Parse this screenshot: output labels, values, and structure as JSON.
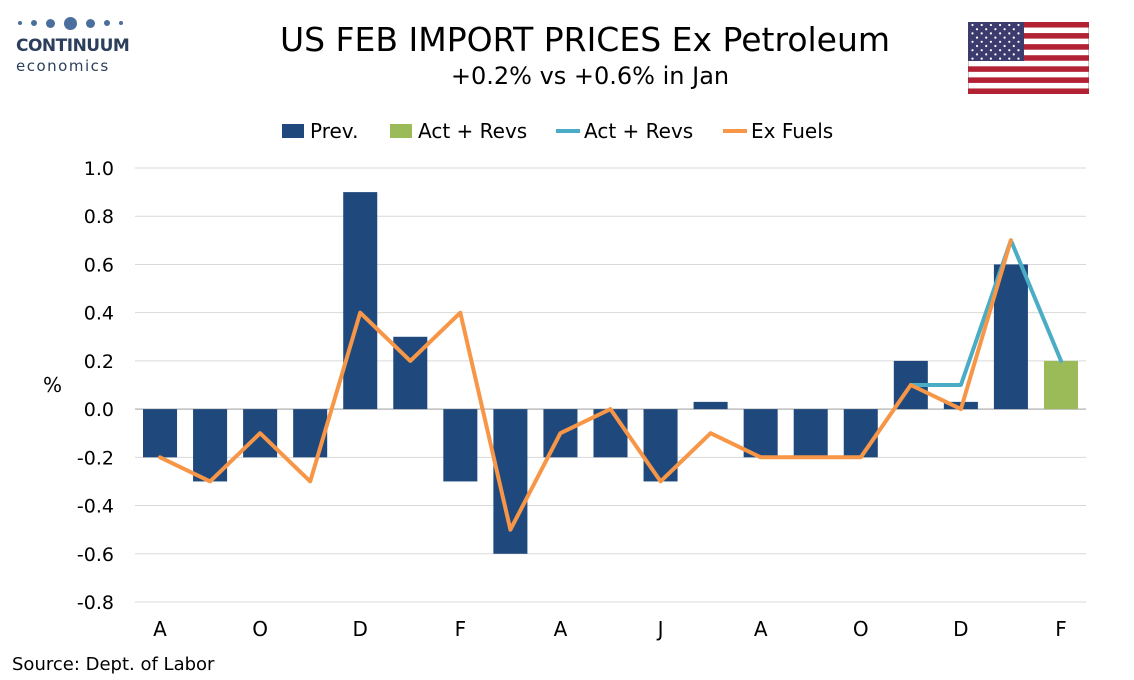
{
  "logo": {
    "name": "CONTINUUM",
    "sub": "economics"
  },
  "title": "US FEB IMPORT PRICES Ex Petroleum",
  "subtitle": "+0.2% vs +0.6% in Jan",
  "source": "Source: Dept. of Labor",
  "colors": {
    "prev": "#1f497d",
    "act_bar": "#9bbb59",
    "act_line": "#4bacc6",
    "ex_fuels": "#f79646",
    "grid": "#d9d9d9"
  },
  "chart_data": {
    "type": "bar",
    "ylabel": "%",
    "ylim": [
      -0.8,
      1.0
    ],
    "yticks": [
      "1.0",
      "0.8",
      "0.6",
      "0.4",
      "0.2",
      "0.0",
      "-0.2",
      "-0.4",
      "-0.6",
      "-0.8"
    ],
    "xtick_labels": [
      "A",
      "O",
      "D",
      "F",
      "A",
      "J",
      "A",
      "O",
      "D",
      "F"
    ],
    "legend": [
      "Prev.",
      "Act + Revs",
      "Act + Revs",
      "Ex Fuels"
    ],
    "legend_position": "top",
    "grid": true,
    "periods": 19,
    "series": [
      {
        "name": "Prev.",
        "kind": "bar",
        "values": [
          -0.2,
          -0.3,
          -0.2,
          -0.2,
          0.9,
          0.3,
          -0.3,
          -0.6,
          -0.2,
          -0.2,
          -0.3,
          0.03,
          -0.2,
          -0.2,
          -0.2,
          0.2,
          0.03,
          0.6,
          null
        ]
      },
      {
        "name": "Act + Revs",
        "kind": "bar",
        "values": [
          null,
          null,
          null,
          null,
          null,
          null,
          null,
          null,
          null,
          null,
          null,
          null,
          null,
          null,
          null,
          null,
          null,
          null,
          0.2
        ]
      },
      {
        "name": "Act + Revs",
        "kind": "line",
        "values": [
          null,
          null,
          null,
          null,
          null,
          null,
          null,
          null,
          null,
          null,
          null,
          null,
          null,
          null,
          null,
          0.1,
          0.1,
          0.7,
          0.2
        ]
      },
      {
        "name": "Ex Fuels",
        "kind": "line",
        "values": [
          -0.2,
          -0.3,
          -0.1,
          -0.3,
          0.4,
          0.2,
          0.4,
          -0.5,
          -0.1,
          0.0,
          -0.3,
          -0.1,
          -0.2,
          -0.2,
          -0.2,
          0.1,
          0.0,
          0.7,
          null
        ]
      }
    ]
  }
}
